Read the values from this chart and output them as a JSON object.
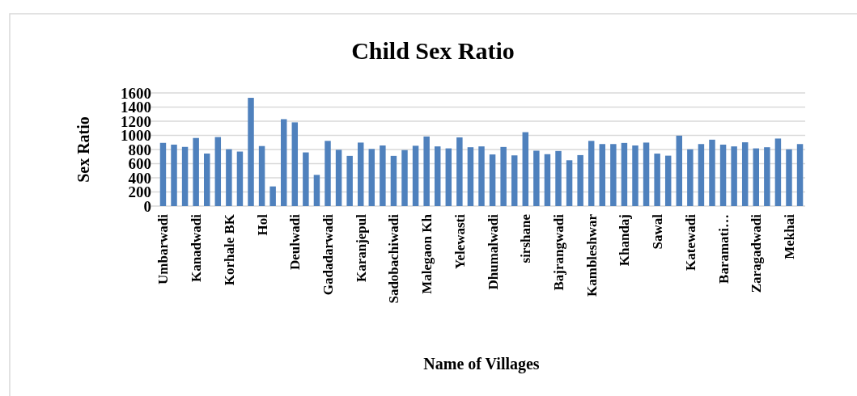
{
  "chart_data": {
    "type": "bar",
    "title": "Child Sex Ratio",
    "xlabel": "Name of Villages",
    "ylabel": "Sex Ratio",
    "categories": [
      "Umbarwadi",
      null,
      null,
      "Kanadwadi",
      null,
      null,
      "Korhale BK",
      null,
      null,
      "Hol",
      null,
      null,
      "Deulwadi",
      null,
      null,
      "Gadadarwadi",
      null,
      null,
      "Karanjepul",
      null,
      null,
      "Sadobachiwadi",
      null,
      null,
      "Malegaon Kh",
      null,
      null,
      "Yelewasti",
      null,
      null,
      "Dhumalwadi",
      null,
      null,
      "sirshane",
      null,
      null,
      "Bajrangwadi",
      null,
      null,
      "Kambleshwar",
      null,
      null,
      "Khandaj",
      null,
      null,
      "Sawal",
      null,
      null,
      "Katewadi",
      null,
      null,
      "Baramati…",
      null,
      null,
      "Zaragadwadi",
      null,
      null,
      "Mekhai",
      null
    ],
    "values": [
      894,
      869,
      837,
      963,
      743,
      976,
      804,
      771,
      1531,
      849,
      278,
      1229,
      1184,
      759,
      441,
      922,
      796,
      710,
      898,
      808,
      857,
      710,
      792,
      853,
      984,
      844,
      816,
      971,
      832,
      844,
      730,
      836,
      717,
      1045,
      783,
      734,
      779,
      648,
      721,
      922,
      877,
      877,
      893,
      857,
      898,
      742,
      713,
      996,
      803,
      877,
      939,
      869,
      844,
      902,
      816,
      832,
      955,
      803,
      877
    ],
    "color": "#4f81bd",
    "ylim": [
      0,
      1600
    ],
    "yticks": [
      0,
      200,
      400,
      600,
      800,
      1000,
      1200,
      1400,
      1600
    ],
    "grid": "y"
  }
}
